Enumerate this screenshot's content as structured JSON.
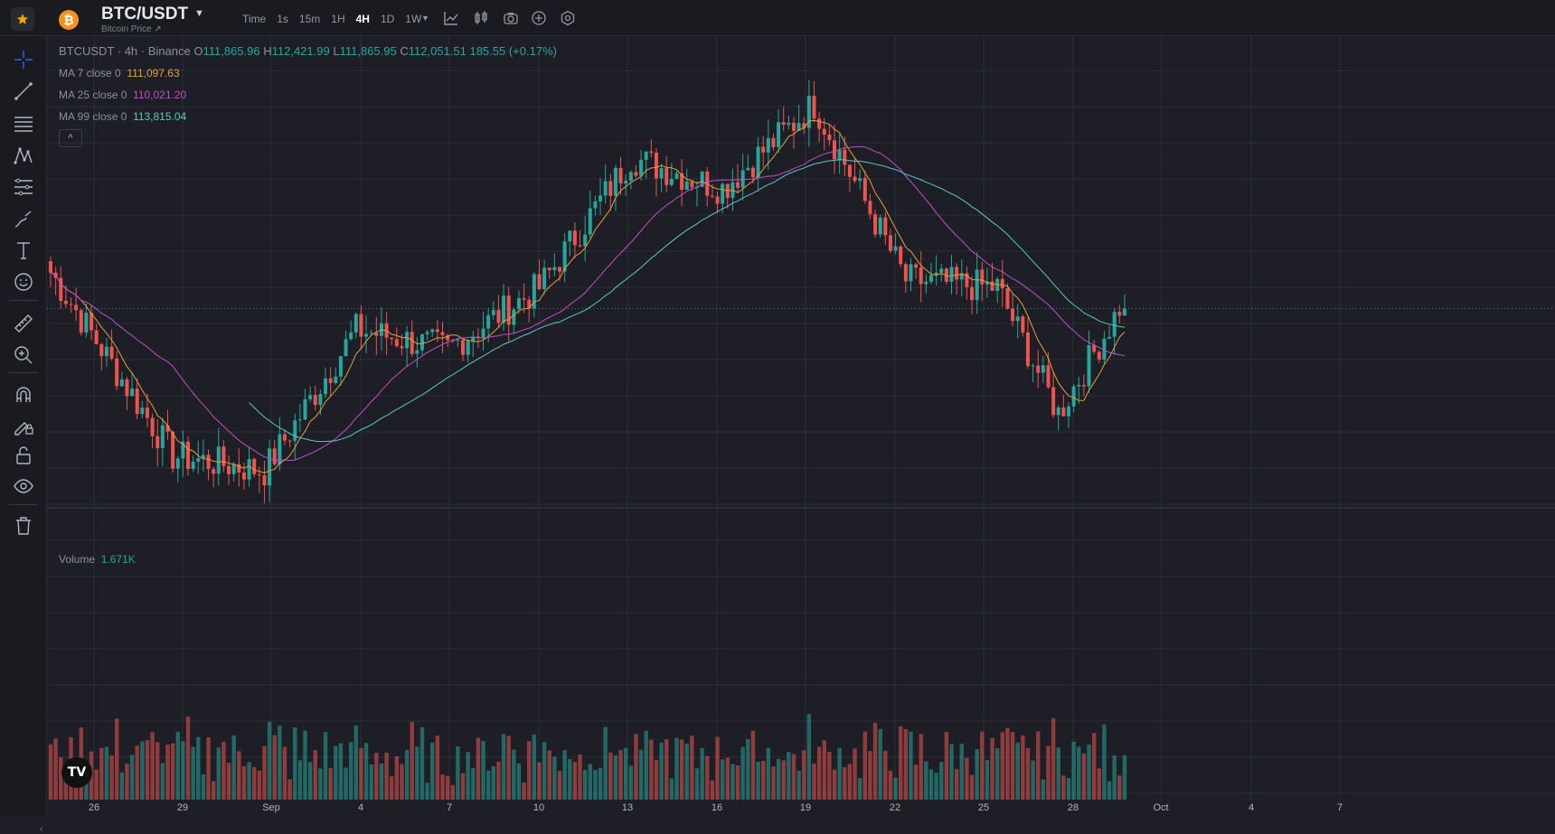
{
  "header": {
    "symbol": "BTC/USDT",
    "subtitle": "Bitcoin Price ↗",
    "coin_glyph": "₿",
    "intervals": [
      {
        "label": "Time",
        "active": false
      },
      {
        "label": "1s",
        "active": false
      },
      {
        "label": "15m",
        "active": false
      },
      {
        "label": "1H",
        "active": false
      },
      {
        "label": "4H",
        "active": true
      },
      {
        "label": "1D",
        "active": false
      },
      {
        "label": "1W",
        "active": false
      }
    ],
    "tools": [
      "line-chart-icon",
      "candles-icon",
      "camera-icon",
      "plus-circle-icon",
      "settings-icon"
    ]
  },
  "toolbar": {
    "items": [
      "crosshair-icon",
      "trend-line-icon",
      "horizontal-lines-icon",
      "pattern-icon",
      "fib-icon",
      "brush-icon",
      "text-icon",
      "emoji-icon",
      "ruler-icon",
      "zoom-in-icon",
      "magnet-icon",
      "edit-lock-icon",
      "lock-icon",
      "eye-icon",
      "trash-icon"
    ]
  },
  "legend": {
    "title": "BTCUSDT · 4h · Binance",
    "o_label": "O",
    "o": "111,865.96",
    "h_label": "H",
    "h": "112,421.99",
    "l_label": "L",
    "l": "111,865.95",
    "c_label": "C",
    "c": "112,051.51",
    "change": "185.55 (+0.17%)",
    "ma7_label": "MA 7 close 0",
    "ma7": "111,097.63",
    "ma25_label": "MA 25 close 0",
    "ma25": "110,021.20",
    "ma99_label": "MA 99 close 0",
    "ma99": "113,815.04",
    "collapse_glyph": "^",
    "volume_label": "Volume",
    "volume": "1.671K"
  },
  "colors": {
    "up": "#26a69a",
    "down": "#ef5350",
    "ma7": "#e0a03c",
    "ma25": "#c04fc8",
    "ma99": "#5ec6c3",
    "grid": "#2a2e39"
  },
  "x_axis": {
    "ticks": [
      "26",
      "29",
      "Sep",
      "4",
      "7",
      "10",
      "13",
      "16",
      "19",
      "22",
      "25",
      "28",
      "Oct",
      "4",
      "7"
    ]
  },
  "watermark": "TV",
  "chart_data": {
    "type": "candlestick",
    "symbol": "BTCUSDT",
    "interval": "4h",
    "exchange": "Binance",
    "y_range": [
      107000,
      118000
    ],
    "price_anchor_points": [
      {
        "date": "Aug 25",
        "close": 113000
      },
      {
        "date": "Aug 29",
        "close": 108200
      },
      {
        "date": "Sep 1",
        "close": 107800
      },
      {
        "date": "Sep 4",
        "close": 111500
      },
      {
        "date": "Sep 7",
        "close": 111000
      },
      {
        "date": "Sep 10",
        "close": 112600
      },
      {
        "date": "Sep 13",
        "close": 116000
      },
      {
        "date": "Sep 16",
        "close": 115200
      },
      {
        "date": "Sep 19",
        "close": 117400
      },
      {
        "date": "Sep 22",
        "close": 112800
      },
      {
        "date": "Sep 25",
        "close": 112600
      },
      {
        "date": "Sep 27",
        "close": 109300
      },
      {
        "date": "Sep 29",
        "close": 112051.51
      }
    ],
    "last_candle": {
      "open": 111865.96,
      "high": 112421.99,
      "low": 111865.95,
      "close": 112051.51
    },
    "moving_averages": [
      {
        "name": "MA 7 close 0",
        "value": 111097.63
      },
      {
        "name": "MA 25 close 0",
        "value": 110021.2
      },
      {
        "name": "MA 99 close 0",
        "value": 113815.04
      }
    ],
    "volume_last": "1.671K"
  }
}
